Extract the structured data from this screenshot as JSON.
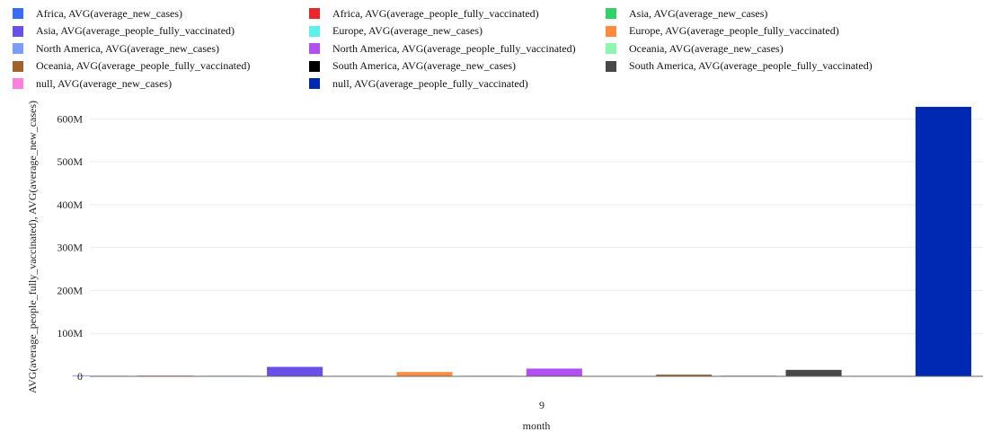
{
  "chart_data": {
    "type": "bar",
    "xlabel": "month",
    "ylabel": "AVG(average_people_fully_vaccinated), AVG(average_new_cases)",
    "categories": [
      "9"
    ],
    "ylim": [
      0,
      630000000
    ],
    "yticks": [
      0,
      100000000,
      200000000,
      300000000,
      400000000,
      500000000,
      600000000
    ],
    "ytick_labels": [
      "0",
      "100M",
      "200M",
      "300M",
      "400M",
      "500M",
      "600M"
    ],
    "grid": true,
    "legend_position": "top",
    "series": [
      {
        "name": "Africa, AVG(average_new_cases)",
        "color": "#3b6cf6",
        "values": [
          2000
        ]
      },
      {
        "name": "Africa, AVG(average_people_fully_vaccinated)",
        "color": "#e8262b",
        "values": [
          1500000
        ]
      },
      {
        "name": "Asia, AVG(average_new_cases)",
        "color": "#33d16b",
        "values": [
          15000
        ]
      },
      {
        "name": "Asia, AVG(average_people_fully_vaccinated)",
        "color": "#6a4fe8",
        "values": [
          22000000
        ]
      },
      {
        "name": "Europe, AVG(average_new_cases)",
        "color": "#5ef0ec",
        "values": [
          10000
        ]
      },
      {
        "name": "Europe, AVG(average_people_fully_vaccinated)",
        "color": "#ff8b3d",
        "values": [
          10000000
        ]
      },
      {
        "name": "North America, AVG(average_new_cases)",
        "color": "#7b9df7",
        "values": [
          8000
        ]
      },
      {
        "name": "North America, AVG(average_people_fully_vaccinated)",
        "color": "#b24ff0",
        "values": [
          18000000
        ]
      },
      {
        "name": "Oceania, AVG(average_new_cases)",
        "color": "#8df7b0",
        "values": [
          500
        ]
      },
      {
        "name": "Oceania, AVG(average_people_fully_vaccinated)",
        "color": "#a0622d",
        "values": [
          4000000
        ]
      },
      {
        "name": "South America, AVG(average_new_cases)",
        "color": "#000000",
        "values": [
          9000
        ]
      },
      {
        "name": "South America, AVG(average_people_fully_vaccinated)",
        "color": "#484848",
        "values": [
          15000000
        ]
      },
      {
        "name": "null, AVG(average_new_cases)",
        "color": "#ff7fe0",
        "values": [
          500000
        ]
      },
      {
        "name": "null, AVG(average_people_fully_vaccinated)",
        "color": "#0029b3",
        "values": [
          628000000
        ]
      }
    ]
  }
}
